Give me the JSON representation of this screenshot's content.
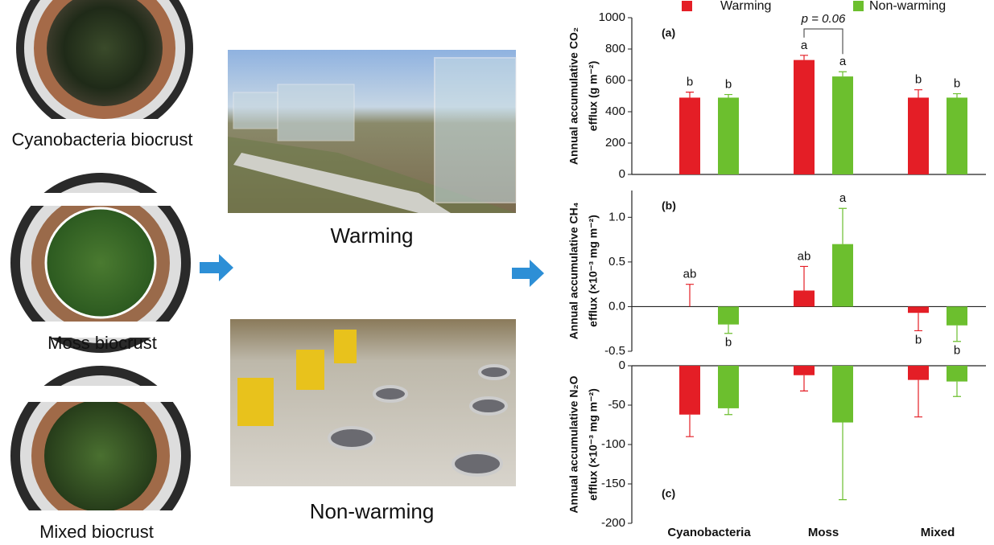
{
  "photos": {
    "biocrusts": [
      "Cyanobacteria biocrust",
      "Moss biocrust",
      "Mixed biocrust"
    ],
    "treatments": [
      "Warming",
      "Non-warming"
    ]
  },
  "chart_data": [
    {
      "type": "bar",
      "panel": "(a)",
      "ylabel": [
        "Annual accumulative CO₂",
        "efflux (g m⁻²)"
      ],
      "ylim": [
        0,
        1000
      ],
      "yticks": [
        0,
        200,
        400,
        600,
        800,
        1000
      ],
      "annotation": "p = 0.06",
      "series": [
        {
          "name": "Warming",
          "color": "#e41e26",
          "values": [
            490,
            730,
            490
          ],
          "errors": [
            35,
            30,
            50
          ],
          "letters": [
            "b",
            "a",
            "b"
          ]
        },
        {
          "name": "Non-warming",
          "color": "#6cbf2e",
          "values": [
            490,
            625,
            490
          ],
          "errors": [
            20,
            30,
            25
          ],
          "letters": [
            "b",
            "a",
            "b"
          ]
        }
      ]
    },
    {
      "type": "bar",
      "panel": "(b)",
      "ylabel": [
        "Annual accumulative CH₄",
        "efflux (×10⁻³ mg m⁻²)"
      ],
      "ylim": [
        -0.5,
        1.3
      ],
      "yticks": [
        -0.5,
        {
          "value": 0,
          "label": "0.0"
        },
        0.5,
        {
          "value": 1,
          "label": "1.0"
        }
      ],
      "series": [
        {
          "color": "#e41e26",
          "values": [
            0,
            0.18,
            -0.07
          ],
          "errors": [
            0.25,
            0.27,
            0.2
          ],
          "letters": [
            "ab",
            "ab",
            "b"
          ]
        },
        {
          "color": "#6cbf2e",
          "values": [
            -0.2,
            0.7,
            -0.21
          ],
          "errors": [
            0.1,
            0.4,
            0.18
          ],
          "letters": [
            "b",
            "a",
            "b"
          ]
        }
      ]
    },
    {
      "type": "bar",
      "panel": "(c)",
      "ylabel": [
        "Annual accumulative N₂O",
        "efflux (×10⁻³ mg m⁻²)"
      ],
      "ylim": [
        -200,
        0
      ],
      "yticks": [
        -200,
        -150,
        -100,
        -50,
        0
      ],
      "categories": [
        "Cyanobacteria",
        "Moss",
        "Mixed"
      ],
      "series": [
        {
          "color": "#e41e26",
          "values": [
            -62,
            -12,
            -18
          ],
          "errors": [
            28,
            20,
            47
          ]
        },
        {
          "color": "#6cbf2e",
          "values": [
            -54,
            -72,
            -20
          ],
          "errors": [
            8,
            98,
            19
          ]
        }
      ]
    }
  ]
}
